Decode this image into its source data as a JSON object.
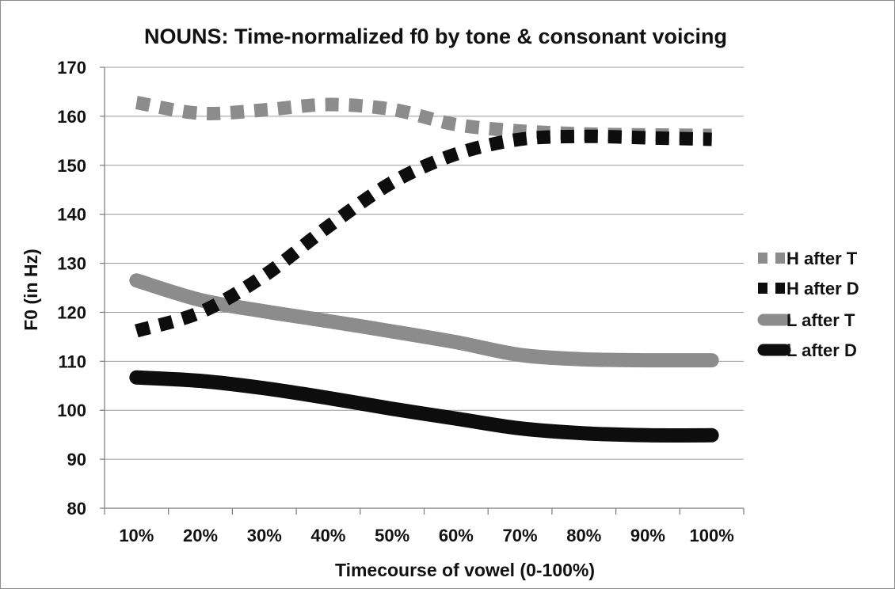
{
  "chart_data": {
    "type": "line",
    "title": "NOUNS: Time-normalized f0 by tone & consonant voicing",
    "xlabel": "Timecourse of vowel (0-100%)",
    "ylabel": "F0 (in Hz)",
    "categories": [
      "10%",
      "20%",
      "30%",
      "40%",
      "50%",
      "60%",
      "70%",
      "80%",
      "90%",
      "100%"
    ],
    "ylim": [
      80,
      170
    ],
    "yticks": [
      80,
      90,
      100,
      110,
      120,
      130,
      140,
      150,
      160,
      170
    ],
    "grid": true,
    "legend_position": "right",
    "series": [
      {
        "name": "H after T",
        "style": "dotted",
        "color": "#8c8c8c",
        "values": [
          162.8,
          160.6,
          161.3,
          162.4,
          161.4,
          158.3,
          157.0,
          156.4,
          156.2,
          156.1
        ]
      },
      {
        "name": "H after D",
        "style": "dotted",
        "color": "#0d0d0d",
        "values": [
          116.2,
          120.0,
          127.5,
          137.5,
          146.5,
          152.3,
          155.3,
          155.9,
          155.6,
          155.3
        ]
      },
      {
        "name": "L after T",
        "style": "solid",
        "color": "#8c8c8c",
        "values": [
          126.5,
          122.5,
          120.2,
          118.2,
          116.1,
          113.9,
          111.3,
          110.4,
          110.2,
          110.2
        ]
      },
      {
        "name": "L after D",
        "style": "solid",
        "color": "#0d0d0d",
        "values": [
          106.7,
          106.0,
          104.5,
          102.5,
          100.3,
          98.3,
          96.3,
          95.3,
          94.9,
          94.9
        ]
      }
    ]
  }
}
